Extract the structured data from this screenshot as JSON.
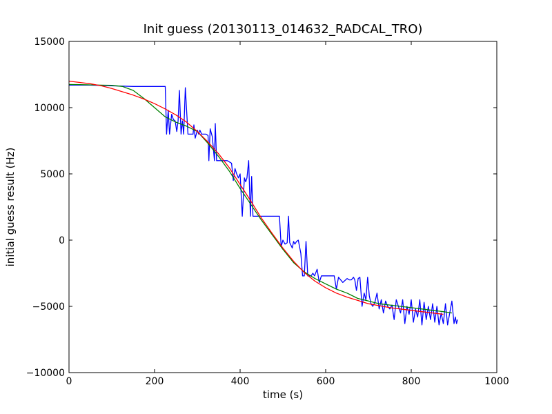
{
  "chart_data": {
    "type": "line",
    "title": "Init guess (20130113_014632_RADCAL_TRO)",
    "xlabel": "time (s)",
    "ylabel": "initial guess result (Hz)",
    "xlim": [
      0,
      1000
    ],
    "ylim": [
      -10000,
      15000
    ],
    "xticks": [
      0,
      200,
      400,
      600,
      800,
      1000
    ],
    "yticks": [
      -10000,
      -5000,
      0,
      5000,
      10000,
      15000
    ],
    "xtick_labels": [
      "0",
      "200",
      "400",
      "600",
      "800",
      "1000"
    ],
    "ytick_labels": [
      "−10000",
      "−5000",
      "0",
      "5000",
      "10000",
      "15000"
    ],
    "grid": false,
    "legend": "none",
    "series": [
      {
        "color": "#0000ff",
        "x": [
          0,
          50,
          100,
          150,
          200,
          222,
          225,
          228,
          232,
          235,
          240,
          244,
          248,
          252,
          255,
          258,
          262,
          265,
          268,
          272,
          278,
          285,
          290,
          292,
          295,
          300,
          303,
          306,
          310,
          315,
          320,
          325,
          327,
          330,
          335,
          340,
          342,
          345,
          350,
          360,
          370,
          380,
          384,
          388,
          392,
          396,
          400,
          405,
          410,
          413,
          416,
          420,
          424,
          427,
          430,
          440,
          450,
          460,
          470,
          480,
          488,
          492,
          496,
          500,
          505,
          510,
          513,
          516,
          519,
          522,
          525,
          528,
          532,
          536,
          542,
          546,
          550,
          554,
          558,
          562,
          566,
          570,
          574,
          580,
          585,
          590,
          595,
          600,
          610,
          620,
          625,
          630,
          640,
          650,
          655,
          660,
          665,
          668,
          672,
          676,
          680,
          685,
          690,
          694,
          698,
          702,
          706,
          710,
          715,
          720,
          725,
          730,
          735,
          740,
          745,
          750,
          755,
          760,
          765,
          770,
          775,
          780,
          785,
          790,
          795,
          800,
          805,
          810,
          815,
          820,
          825,
          830,
          835,
          840,
          845,
          850,
          855,
          860,
          865,
          870,
          875,
          880,
          885,
          890,
          895,
          900,
          903,
          906,
          908
        ],
        "y": [
          11700,
          11700,
          11650,
          11600,
          11600,
          11600,
          11600,
          8000,
          9800,
          8000,
          9500,
          9100,
          9000,
          8200,
          9000,
          11300,
          8000,
          9000,
          8000,
          11500,
          8000,
          8000,
          8000,
          8700,
          7700,
          8300,
          8000,
          8300,
          8000,
          8000,
          8000,
          7900,
          6000,
          8400,
          7800,
          6000,
          8800,
          6000,
          6000,
          6000,
          6000,
          5800,
          4500,
          5400,
          5000,
          4700,
          5000,
          1800,
          4700,
          4400,
          4700,
          6000,
          1800,
          4800,
          1800,
          1800,
          1800,
          1800,
          1800,
          1800,
          1800,
          1800,
          -500,
          0,
          -300,
          -200,
          1800,
          -200,
          -400,
          -600,
          -100,
          -300,
          -100,
          0,
          -1000,
          -2700,
          -2700,
          -100,
          -2700,
          -2700,
          -2700,
          -2500,
          -2700,
          -2200,
          -3200,
          -2700,
          -2700,
          -2700,
          -2700,
          -2700,
          -3700,
          -2800,
          -3200,
          -2900,
          -3000,
          -3000,
          -2800,
          -3000,
          -3800,
          -2900,
          -2800,
          -5000,
          -4000,
          -4500,
          -2800,
          -4200,
          -4800,
          -5000,
          -4700,
          -4000,
          -5200,
          -4500,
          -5500,
          -4600,
          -5000,
          -5200,
          -4900,
          -6000,
          -4500,
          -5000,
          -5500,
          -4500,
          -6300,
          -5000,
          -5600,
          -4500,
          -6200,
          -5200,
          -5800,
          -4500,
          -6400,
          -4700,
          -6000,
          -5000,
          -6000,
          -4800,
          -6200,
          -5000,
          -6400,
          -5500,
          -6300,
          -4800,
          -6400,
          -5500,
          -4600,
          -6300,
          -5800,
          -6300,
          -6000
        ]
      },
      {
        "color": "#008000",
        "x": [
          0,
          25,
          50,
          75,
          100,
          125,
          150,
          175,
          200,
          225,
          250,
          275,
          300,
          325,
          350,
          375,
          400,
          425,
          450,
          475,
          500,
          525,
          550,
          575,
          600,
          625,
          650,
          675,
          700,
          725,
          750,
          775,
          800,
          825,
          850,
          875,
          895
        ],
        "y": [
          11750,
          11740,
          11720,
          11700,
          11680,
          11600,
          11300,
          10700,
          10000,
          9300,
          8900,
          8600,
          8200,
          7300,
          6300,
          5200,
          3900,
          2700,
          1500,
          400,
          -700,
          -1700,
          -2400,
          -2900,
          -3300,
          -3700,
          -4000,
          -4400,
          -4600,
          -4800,
          -4900,
          -5000,
          -5100,
          -5200,
          -5300,
          -5400,
          -5500
        ]
      },
      {
        "color": "#ff0000",
        "x": [
          0,
          25,
          50,
          75,
          100,
          125,
          150,
          175,
          200,
          225,
          250,
          275,
          300,
          325,
          350,
          375,
          400,
          425,
          450,
          475,
          500,
          525,
          550,
          575,
          600,
          625,
          650,
          675,
          700,
          725,
          750,
          775,
          800,
          825,
          850,
          875
        ],
        "y": [
          12000,
          11900,
          11800,
          11650,
          11450,
          11200,
          10950,
          10650,
          10300,
          9900,
          9450,
          8900,
          8200,
          7400,
          6500,
          5450,
          4200,
          2950,
          1650,
          500,
          -600,
          -1600,
          -2450,
          -3100,
          -3600,
          -4000,
          -4300,
          -4550,
          -4800,
          -4950,
          -5100,
          -5200,
          -5300,
          -5400,
          -5500,
          -5600
        ]
      }
    ]
  }
}
